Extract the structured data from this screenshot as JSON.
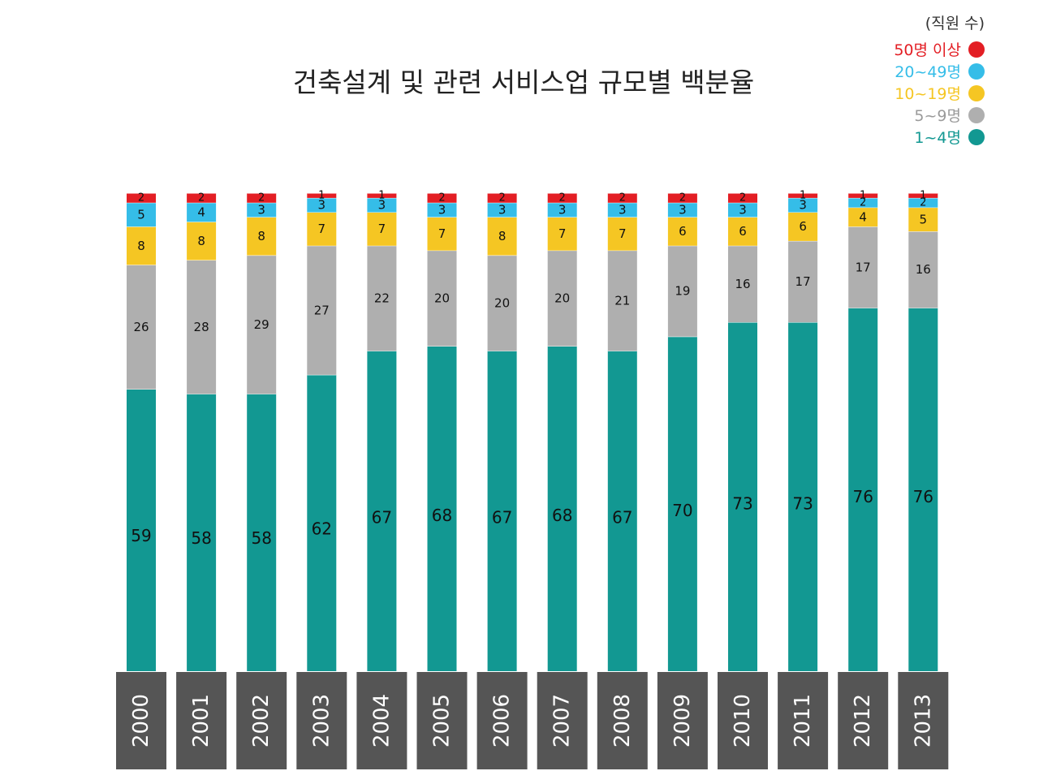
{
  "chart_data": {
    "type": "bar",
    "stacked": true,
    "title": "건축설계 및 관련 서비스업 규모별 백분율",
    "legend_title": "(직원 수)",
    "legend_position": "top-right",
    "categories": [
      "2000",
      "2001",
      "2002",
      "2003",
      "2004",
      "2005",
      "2006",
      "2007",
      "2008",
      "2009",
      "2010",
      "2011",
      "2012",
      "2013"
    ],
    "series": [
      {
        "name": "1~4명",
        "color": "#129892",
        "values": [
          59,
          58,
          58,
          62,
          67,
          68,
          67,
          68,
          67,
          70,
          73,
          73,
          76,
          76
        ]
      },
      {
        "name": "5~9명",
        "color": "#afafaf",
        "values": [
          26,
          28,
          29,
          27,
          22,
          20,
          20,
          20,
          21,
          19,
          16,
          17,
          17,
          16
        ]
      },
      {
        "name": "10~19명",
        "color": "#f5c623",
        "values": [
          8,
          8,
          8,
          7,
          7,
          7,
          8,
          7,
          7,
          6,
          6,
          6,
          4,
          5
        ]
      },
      {
        "name": "20~49명",
        "color": "#35bde8",
        "values": [
          5,
          4,
          3,
          3,
          3,
          3,
          3,
          3,
          3,
          3,
          3,
          3,
          2,
          2
        ]
      },
      {
        "name": "50명 이상",
        "color": "#e31e24",
        "values": [
          2,
          2,
          2,
          1,
          1,
          2,
          2,
          2,
          2,
          2,
          2,
          1,
          1,
          1
        ]
      }
    ],
    "ylim": [
      0,
      100
    ],
    "xlabel": "",
    "ylabel": ""
  },
  "colors": {
    "year_box": "#555555",
    "title": "#222222",
    "legend_title": "#333333"
  }
}
